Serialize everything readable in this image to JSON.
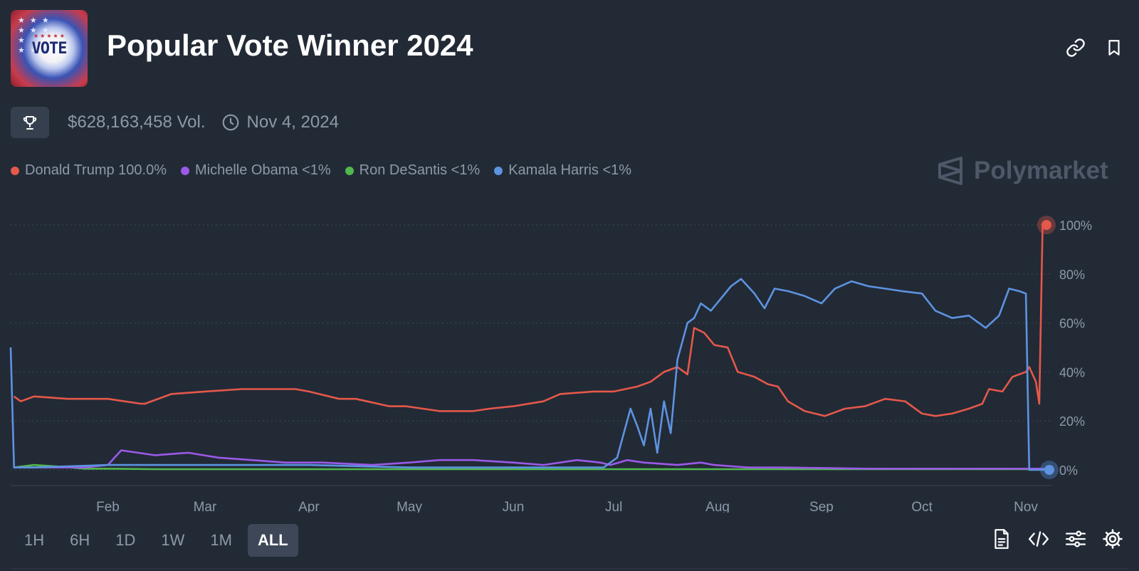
{
  "header": {
    "title": "Popular Vote Winner 2024",
    "logo_text": "VOTE"
  },
  "meta": {
    "volume": "$628,163,458 Vol.",
    "date": "Nov 4, 2024"
  },
  "watermark": "Polymarket",
  "legend": [
    {
      "label": "Donald Trump 100.0%",
      "color": "#e5584a"
    },
    {
      "label": "Michelle Obama <1%",
      "color": "#9b59e8"
    },
    {
      "label": "Ron DeSantis <1%",
      "color": "#52b84e"
    },
    {
      "label": "Kamala Harris <1%",
      "color": "#5d93e0"
    }
  ],
  "ranges": {
    "items": [
      "1H",
      "6H",
      "1D",
      "1W",
      "1M",
      "ALL"
    ],
    "selected": "ALL"
  },
  "icons": {
    "link": "link-icon",
    "bookmark": "bookmark-icon",
    "trophy": "trophy-icon",
    "clock": "clock-icon",
    "document": "document-icon",
    "code": "code-icon",
    "sliders": "sliders-icon",
    "settings": "gear-icon"
  },
  "chart_data": {
    "type": "line",
    "y_ticks": [
      "100%",
      "80%",
      "60%",
      "40%",
      "20%",
      "0%"
    ],
    "x_ticks": [
      "Feb",
      "Mar",
      "Apr",
      "May",
      "Jun",
      "Jul",
      "Aug",
      "Sep",
      "Oct",
      "Nov"
    ],
    "ylim": [
      0,
      100
    ],
    "grid": true,
    "series": [
      {
        "name": "Donald Trump",
        "color": "#e5584a",
        "x": [
          "2024-01-04",
          "2024-01-06",
          "2024-01-10",
          "2024-01-20",
          "2024-02-01",
          "2024-02-06",
          "2024-02-11",
          "2024-02-12",
          "2024-02-20",
          "2024-03-01",
          "2024-03-12",
          "2024-03-20",
          "2024-03-28",
          "2024-04-01",
          "2024-04-10",
          "2024-04-15",
          "2024-04-25",
          "2024-04-30",
          "2024-05-10",
          "2024-05-20",
          "2024-05-25",
          "2024-06-01",
          "2024-06-10",
          "2024-06-15",
          "2024-06-25",
          "2024-07-01",
          "2024-07-08",
          "2024-07-12",
          "2024-07-16",
          "2024-07-20",
          "2024-07-23",
          "2024-07-25",
          "2024-07-28",
          "2024-07-31",
          "2024-08-04",
          "2024-08-07",
          "2024-08-12",
          "2024-08-16",
          "2024-08-19",
          "2024-08-22",
          "2024-08-27",
          "2024-09-02",
          "2024-09-08",
          "2024-09-14",
          "2024-09-20",
          "2024-09-26",
          "2024-10-01",
          "2024-10-05",
          "2024-10-10",
          "2024-10-15",
          "2024-10-19",
          "2024-10-21",
          "2024-10-25",
          "2024-10-28",
          "2024-11-01",
          "2024-11-02",
          "2024-11-04",
          "2024-11-05",
          "2024-11-06",
          "2024-11-08"
        ],
        "values": [
          30,
          28,
          30,
          29,
          29,
          28,
          27,
          27,
          31,
          32,
          33,
          33,
          33,
          32,
          29,
          29,
          26,
          26,
          24,
          24,
          25,
          26,
          28,
          31,
          32,
          32,
          34,
          36,
          40,
          42,
          39,
          58,
          56,
          51,
          50,
          40,
          38,
          35,
          34,
          28,
          24,
          22,
          25,
          26,
          29,
          28,
          23,
          22,
          23,
          25,
          27,
          33,
          32,
          38,
          40,
          42,
          36,
          27,
          100,
          100
        ]
      },
      {
        "name": "Michelle Obama",
        "color": "#9b59e8",
        "x": [
          "2024-01-04",
          "2024-01-15",
          "2024-01-25",
          "2024-02-01",
          "2024-02-05",
          "2024-02-10",
          "2024-02-15",
          "2024-02-25",
          "2024-03-05",
          "2024-03-15",
          "2024-03-25",
          "2024-04-05",
          "2024-04-20",
          "2024-05-01",
          "2024-05-10",
          "2024-05-20",
          "2024-06-01",
          "2024-06-10",
          "2024-06-20",
          "2024-06-27",
          "2024-06-30",
          "2024-07-05",
          "2024-07-10",
          "2024-07-20",
          "2024-07-27",
          "2024-07-31",
          "2024-08-10",
          "2024-08-20",
          "2024-09-15",
          "2024-10-15",
          "2024-11-08"
        ],
        "values": [
          1,
          1,
          1,
          2,
          8,
          7,
          6,
          7,
          5,
          4,
          3,
          3,
          2,
          3,
          4,
          4,
          3,
          2,
          4,
          3,
          2,
          4,
          3,
          2,
          3,
          2,
          1,
          1,
          0.5,
          0.5,
          0.5
        ]
      },
      {
        "name": "Ron DeSantis",
        "color": "#52b84e",
        "x": [
          "2024-01-04",
          "2024-01-10",
          "2024-01-21",
          "2024-01-25",
          "2024-02-01",
          "2024-02-15",
          "2024-03-01",
          "2024-04-01",
          "2024-05-01",
          "2024-06-01",
          "2024-07-01",
          "2024-08-01",
          "2024-09-01",
          "2024-10-01",
          "2024-11-08"
        ],
        "values": [
          1,
          2,
          1,
          0.5,
          0.5,
          0.3,
          0.3,
          0.3,
          0.3,
          0.3,
          0.3,
          0.3,
          0.3,
          0.3,
          0.3
        ]
      },
      {
        "name": "Kamala Harris",
        "color": "#5d93e0",
        "x": [
          "2024-01-03",
          "2024-01-04",
          "2024-01-10",
          "2024-02-01",
          "2024-03-01",
          "2024-04-01",
          "2024-05-01",
          "2024-06-01",
          "2024-06-25",
          "2024-06-28",
          "2024-07-02",
          "2024-07-06",
          "2024-07-08",
          "2024-07-10",
          "2024-07-12",
          "2024-07-14",
          "2024-07-16",
          "2024-07-18",
          "2024-07-20",
          "2024-07-22",
          "2024-07-23",
          "2024-07-25",
          "2024-07-27",
          "2024-07-30",
          "2024-08-02",
          "2024-08-05",
          "2024-08-08",
          "2024-08-12",
          "2024-08-15",
          "2024-08-18",
          "2024-08-22",
          "2024-08-27",
          "2024-09-01",
          "2024-09-05",
          "2024-09-10",
          "2024-09-15",
          "2024-09-20",
          "2024-09-25",
          "2024-10-01",
          "2024-10-05",
          "2024-10-10",
          "2024-10-15",
          "2024-10-20",
          "2024-10-24",
          "2024-10-27",
          "2024-10-30",
          "2024-11-01",
          "2024-11-02",
          "2024-11-03",
          "2024-11-04",
          "2024-11-05",
          "2024-11-08"
        ],
        "values": [
          50,
          1,
          1,
          2,
          2,
          2,
          1,
          1,
          1,
          1,
          5,
          25,
          18,
          10,
          25,
          7,
          28,
          15,
          45,
          55,
          60,
          62,
          68,
          65,
          70,
          75,
          78,
          72,
          66,
          74,
          73,
          71,
          68,
          74,
          77,
          75,
          74,
          73,
          72,
          65,
          62,
          63,
          58,
          63,
          74,
          73,
          72,
          0,
          0,
          0,
          0,
          0
        ]
      }
    ]
  }
}
